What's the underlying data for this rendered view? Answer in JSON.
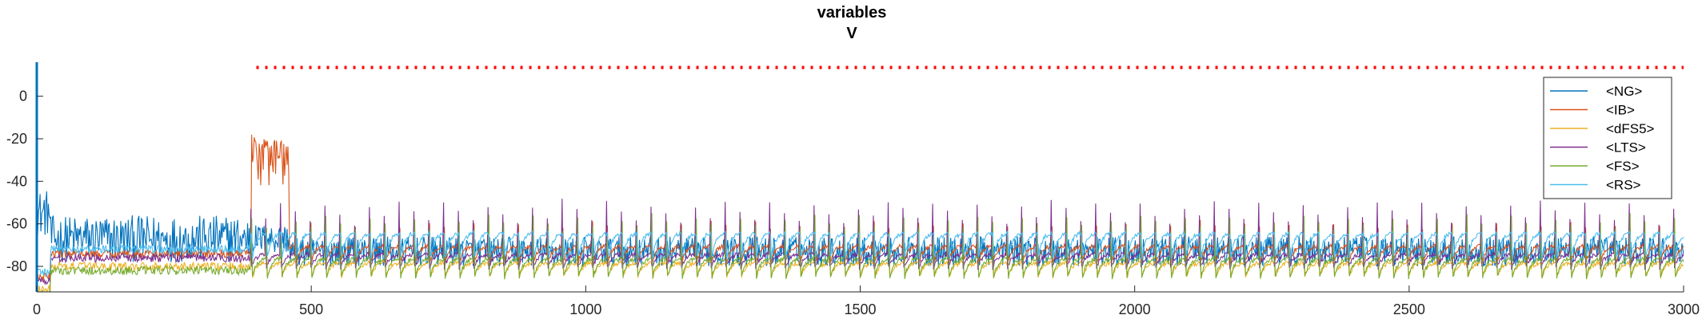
{
  "chart_data": {
    "type": "line",
    "title": "variables",
    "subtitle": "V",
    "xlabel": "",
    "ylabel": "",
    "xlim": [
      0,
      3000
    ],
    "ylim": [
      -92,
      16
    ],
    "x_ticks": [
      0,
      500,
      1000,
      1500,
      2000,
      2500,
      3000
    ],
    "y_ticks": [
      0,
      -20,
      -40,
      -60,
      -80
    ],
    "grid": false,
    "legend_position": "top-right",
    "series": [
      {
        "name": "<NG>",
        "color": "#0072BD",
        "rest": -73,
        "amp": 5,
        "spike_amp": 0,
        "noisy": true
      },
      {
        "name": "<IB>",
        "color": "#D95319",
        "rest": -80,
        "amp": 10,
        "spike_amp": 40
      },
      {
        "name": "<dFS5>",
        "color": "#EDB120",
        "rest": -86,
        "amp": 8,
        "spike_amp": 60
      },
      {
        "name": "<LTS>",
        "color": "#7E2F8E",
        "rest": -82,
        "amp": 8,
        "spike_amp": 25
      },
      {
        "name": "<FS>",
        "color": "#77AC30",
        "rest": -88,
        "amp": 12,
        "spike_amp": 75
      },
      {
        "name": "<RS>",
        "color": "#4DBEEE",
        "rest": -78,
        "amp": 14,
        "spike_amp": 20
      }
    ],
    "annotations": [
      {
        "type": "dotted-hline",
        "color": "#FF0000",
        "y": 13.5,
        "x_start": 400,
        "x_end": 3000
      }
    ],
    "oscillation_period": 27,
    "oscillation_start": 390
  }
}
